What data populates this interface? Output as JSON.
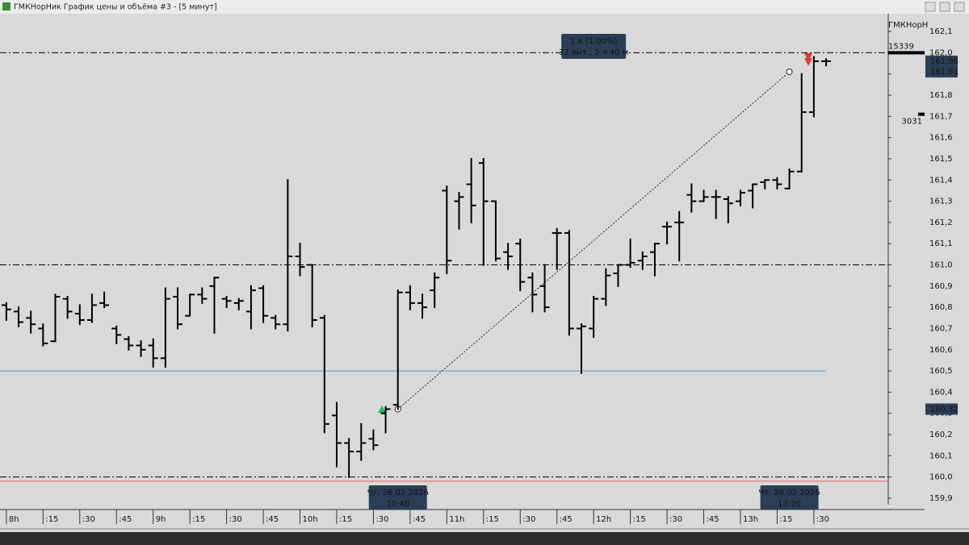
{
  "window": {
    "title": "ГМКНорНик График цены и объёма #3 - [5 минут]",
    "instrument": "ГМКНорН"
  },
  "chart_data": {
    "type": "ohlc",
    "color": "#000000",
    "x": [
      480,
      485,
      490,
      495,
      500,
      505,
      510,
      515,
      520,
      525,
      530,
      535,
      540,
      545,
      550,
      555,
      560,
      565,
      570,
      575,
      580,
      585,
      590,
      595,
      600,
      605,
      610,
      615,
      620,
      625,
      630,
      635,
      640,
      645,
      650,
      655,
      660,
      665,
      670,
      675,
      680,
      685,
      690,
      695,
      700,
      705,
      710,
      715,
      720,
      725,
      730,
      735,
      740,
      745,
      750,
      755,
      760,
      765,
      770,
      775,
      780,
      785,
      790,
      795,
      800,
      805,
      810,
      815
    ],
    "open": [
      160.81,
      160.78,
      160.75,
      160.7,
      160.64,
      160.84,
      160.77,
      160.74,
      160.82,
      160.7,
      160.65,
      160.62,
      160.62,
      160.56,
      160.85,
      160.76,
      160.86,
      160.9,
      160.84,
      160.82,
      160.78,
      160.89,
      160.75,
      160.72,
      161.04,
      161.0,
      160.75,
      160.29,
      160.16,
      160.12,
      160.18,
      160.3,
      160.34,
      160.87,
      160.82,
      160.88,
      161.35,
      161.3,
      161.38,
      161.48,
      161.3,
      161.06,
      161.1,
      160.94,
      160.9,
      161.15,
      161.15,
      160.7,
      160.7,
      160.84,
      160.96,
      161.0,
      161.02,
      161.06,
      161.18,
      161.2,
      161.33,
      161.3,
      161.32,
      161.31,
      161.3,
      161.35,
      161.39,
      161.4,
      161.36,
      161.44,
      161.72,
      161.96
    ],
    "high": [
      160.82,
      160.8,
      160.78,
      160.72,
      160.86,
      160.85,
      160.81,
      160.86,
      160.87,
      160.71,
      160.66,
      160.64,
      160.65,
      160.89,
      160.89,
      160.86,
      160.89,
      160.94,
      160.85,
      160.84,
      160.9,
      160.9,
      160.76,
      161.4,
      161.1,
      161.0,
      160.76,
      160.35,
      160.18,
      160.25,
      160.22,
      160.33,
      160.88,
      160.9,
      160.86,
      160.96,
      161.37,
      161.34,
      161.5,
      161.5,
      161.3,
      161.1,
      161.12,
      160.96,
      161.0,
      161.17,
      161.16,
      160.72,
      160.85,
      160.98,
      161.0,
      161.12,
      161.06,
      161.1,
      161.2,
      161.25,
      161.38,
      161.35,
      161.35,
      161.32,
      161.35,
      161.38,
      161.4,
      161.41,
      161.45,
      161.9,
      161.98,
      161.97
    ],
    "low": [
      160.74,
      160.71,
      160.68,
      160.62,
      160.64,
      160.75,
      160.72,
      160.73,
      160.8,
      160.63,
      160.6,
      160.57,
      160.52,
      160.52,
      160.7,
      160.76,
      160.82,
      160.68,
      160.8,
      160.79,
      160.7,
      160.73,
      160.7,
      160.69,
      160.95,
      160.71,
      160.21,
      160.05,
      160.0,
      160.08,
      160.13,
      160.21,
      160.32,
      160.79,
      160.75,
      160.8,
      160.96,
      161.17,
      161.2,
      161.0,
      161.02,
      160.98,
      160.88,
      160.78,
      160.78,
      160.98,
      160.67,
      160.49,
      160.66,
      160.81,
      160.9,
      160.99,
      160.98,
      160.95,
      161.1,
      161.02,
      161.25,
      161.3,
      161.22,
      161.2,
      161.28,
      161.27,
      161.36,
      161.36,
      161.36,
      161.44,
      161.7,
      161.94
    ],
    "close": [
      160.79,
      160.73,
      160.72,
      160.63,
      160.85,
      160.78,
      160.74,
      160.81,
      160.81,
      160.67,
      160.62,
      160.6,
      160.56,
      160.84,
      160.72,
      160.86,
      160.84,
      160.94,
      160.83,
      160.83,
      160.88,
      160.76,
      160.72,
      161.04,
      160.99,
      160.74,
      160.25,
      160.16,
      160.12,
      160.16,
      160.15,
      160.32,
      160.87,
      160.82,
      160.8,
      160.94,
      161.02,
      161.32,
      161.28,
      161.3,
      161.03,
      161.04,
      160.92,
      160.86,
      160.8,
      161.15,
      160.7,
      160.71,
      160.84,
      160.95,
      161.0,
      161.01,
      161.04,
      161.1,
      161.18,
      161.2,
      161.3,
      161.32,
      161.32,
      161.29,
      161.34,
      161.38,
      161.4,
      161.38,
      161.44,
      161.72,
      161.96,
      161.96
    ],
    "xlim": [
      477.4,
      840.4
    ],
    "xticks": [
      {
        "value": 480,
        "label": "8h"
      },
      {
        "value": 495,
        "label": ":15"
      },
      {
        "value": 510,
        "label": ":30"
      },
      {
        "value": 525,
        "label": ":45"
      },
      {
        "value": 540,
        "label": "9h"
      },
      {
        "value": 555,
        "label": ":15"
      },
      {
        "value": 570,
        "label": ":30"
      },
      {
        "value": 585,
        "label": ":45"
      },
      {
        "value": 600,
        "label": "10h"
      },
      {
        "value": 615,
        "label": ":15"
      },
      {
        "value": 630,
        "label": ":30"
      },
      {
        "value": 645,
        "label": ":45"
      },
      {
        "value": 660,
        "label": "11h"
      },
      {
        "value": 675,
        "label": ":15"
      },
      {
        "value": 690,
        "label": ":30"
      },
      {
        "value": 705,
        "label": ":45"
      },
      {
        "value": 720,
        "label": "12h"
      },
      {
        "value": 735,
        "label": ":15"
      },
      {
        "value": 750,
        "label": ":30"
      },
      {
        "value": 765,
        "label": ":45"
      },
      {
        "value": 780,
        "label": "13h"
      },
      {
        "value": 795,
        "label": ":15"
      },
      {
        "value": 810,
        "label": ":30"
      }
    ],
    "ylim": [
      159.858,
      162.184
    ],
    "yticks": [
      {
        "value": 159.9,
        "label": "159,9"
      },
      {
        "value": 160.0,
        "label": "160,0"
      },
      {
        "value": 160.1,
        "label": "160,1"
      },
      {
        "value": 160.2,
        "label": "160,2"
      },
      {
        "value": 160.3,
        "label": "160,3"
      },
      {
        "value": 160.4,
        "label": "160,4"
      },
      {
        "value": 160.5,
        "label": "160,5"
      },
      {
        "value": 160.6,
        "label": "160,6"
      },
      {
        "value": 160.7,
        "label": "160,7"
      },
      {
        "value": 160.8,
        "label": "160,8"
      },
      {
        "value": 160.9,
        "label": "160,9"
      },
      {
        "value": 161.0,
        "label": "161,0"
      },
      {
        "value": 161.1,
        "label": "161,1"
      },
      {
        "value": 161.2,
        "label": "161,2"
      },
      {
        "value": 161.3,
        "label": "161,3"
      },
      {
        "value": 161.4,
        "label": "161,4"
      },
      {
        "value": 161.5,
        "label": "161,5"
      },
      {
        "value": 161.6,
        "label": "161,6"
      },
      {
        "value": 161.7,
        "label": "161,7"
      },
      {
        "value": 161.8,
        "label": "161,8"
      },
      {
        "value": 161.9,
        "label": "161,9"
      },
      {
        "value": 162.0,
        "label": "162,0"
      },
      {
        "value": 162.1,
        "label": "162,1"
      }
    ],
    "levels": [
      {
        "value": 162.0,
        "color": "#000000",
        "style": "dashdot"
      },
      {
        "value": 161.0,
        "color": "#000000",
        "style": "dashdot"
      },
      {
        "value": 160.0,
        "color": "#000000",
        "style": "dashdot"
      },
      {
        "value": 160.5,
        "color": "#4a9fd8",
        "style": "solid"
      },
      {
        "value": 159.98,
        "color": "#e06060",
        "style": "solid"
      }
    ],
    "price_labels": [
      {
        "value": 161.96,
        "label": "161,96"
      },
      {
        "value": 161.91,
        "label": "161,91"
      },
      {
        "value": 160.32,
        "label": "160,32"
      }
    ],
    "volume_marks": [
      {
        "value": 162.0,
        "label": "15339"
      },
      {
        "value": 161.71,
        "label": "3031"
      }
    ],
    "measure": {
      "start": {
        "time": {
          "value": 640,
          "label": "10:40"
        },
        "price": 160.32,
        "date": "Чт. 26.02.2026"
      },
      "end": {
        "time": {
          "value": 800,
          "label": "13:20"
        },
        "price": 161.91,
        "date": "Чт. 26.02.2026"
      },
      "text": [
        "1,6 (1.00%)",
        "32 инт., 2 ч 40 м"
      ]
    }
  }
}
